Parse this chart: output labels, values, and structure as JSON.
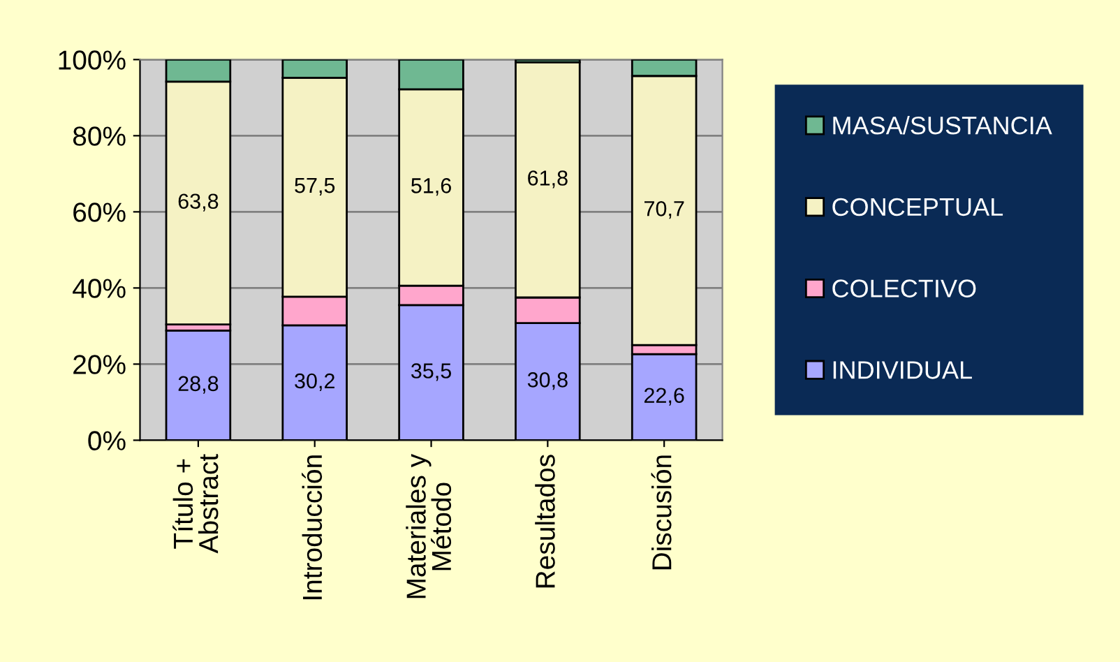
{
  "chart_data": {
    "type": "bar",
    "stacked": true,
    "categories": [
      "Título +\nAbstract",
      "Introducción",
      "Materiales y\nMétodo",
      "Resultados",
      "Discusión"
    ],
    "series": [
      {
        "name": "INDIVIDUAL",
        "color": "#a6a6ff",
        "values": [
          28.8,
          30.2,
          35.5,
          30.8,
          22.6
        ],
        "value_labels": [
          "28,8",
          "30,2",
          "35,5",
          "30,8",
          "22,6"
        ]
      },
      {
        "name": "COLECTIVO",
        "color": "#ffa6cc",
        "values": [
          1.6,
          7.5,
          5.1,
          6.7,
          2.4
        ],
        "value_labels": [
          null,
          null,
          null,
          null,
          null
        ]
      },
      {
        "name": "CONCEPTUAL",
        "color": "#f5f2c4",
        "values": [
          63.8,
          57.5,
          51.6,
          61.8,
          70.7
        ],
        "value_labels": [
          "63,8",
          "57,5",
          "51,6",
          "61,8",
          "70,7"
        ]
      },
      {
        "name": "MASA/SUSTANCIA",
        "color": "#6fb892",
        "values": [
          5.8,
          4.8,
          7.8,
          0.7,
          4.3
        ],
        "value_labels": [
          null,
          null,
          null,
          null,
          null
        ]
      }
    ],
    "ylim": [
      0,
      100
    ],
    "yticks": [
      {
        "value": 0,
        "label": "0%"
      },
      {
        "value": 20,
        "label": "20%"
      },
      {
        "value": 40,
        "label": "40%"
      },
      {
        "value": 60,
        "label": "60%"
      },
      {
        "value": 80,
        "label": "80%"
      },
      {
        "value": 100,
        "label": "100%"
      }
    ],
    "grid": "y",
    "legend": "right"
  }
}
